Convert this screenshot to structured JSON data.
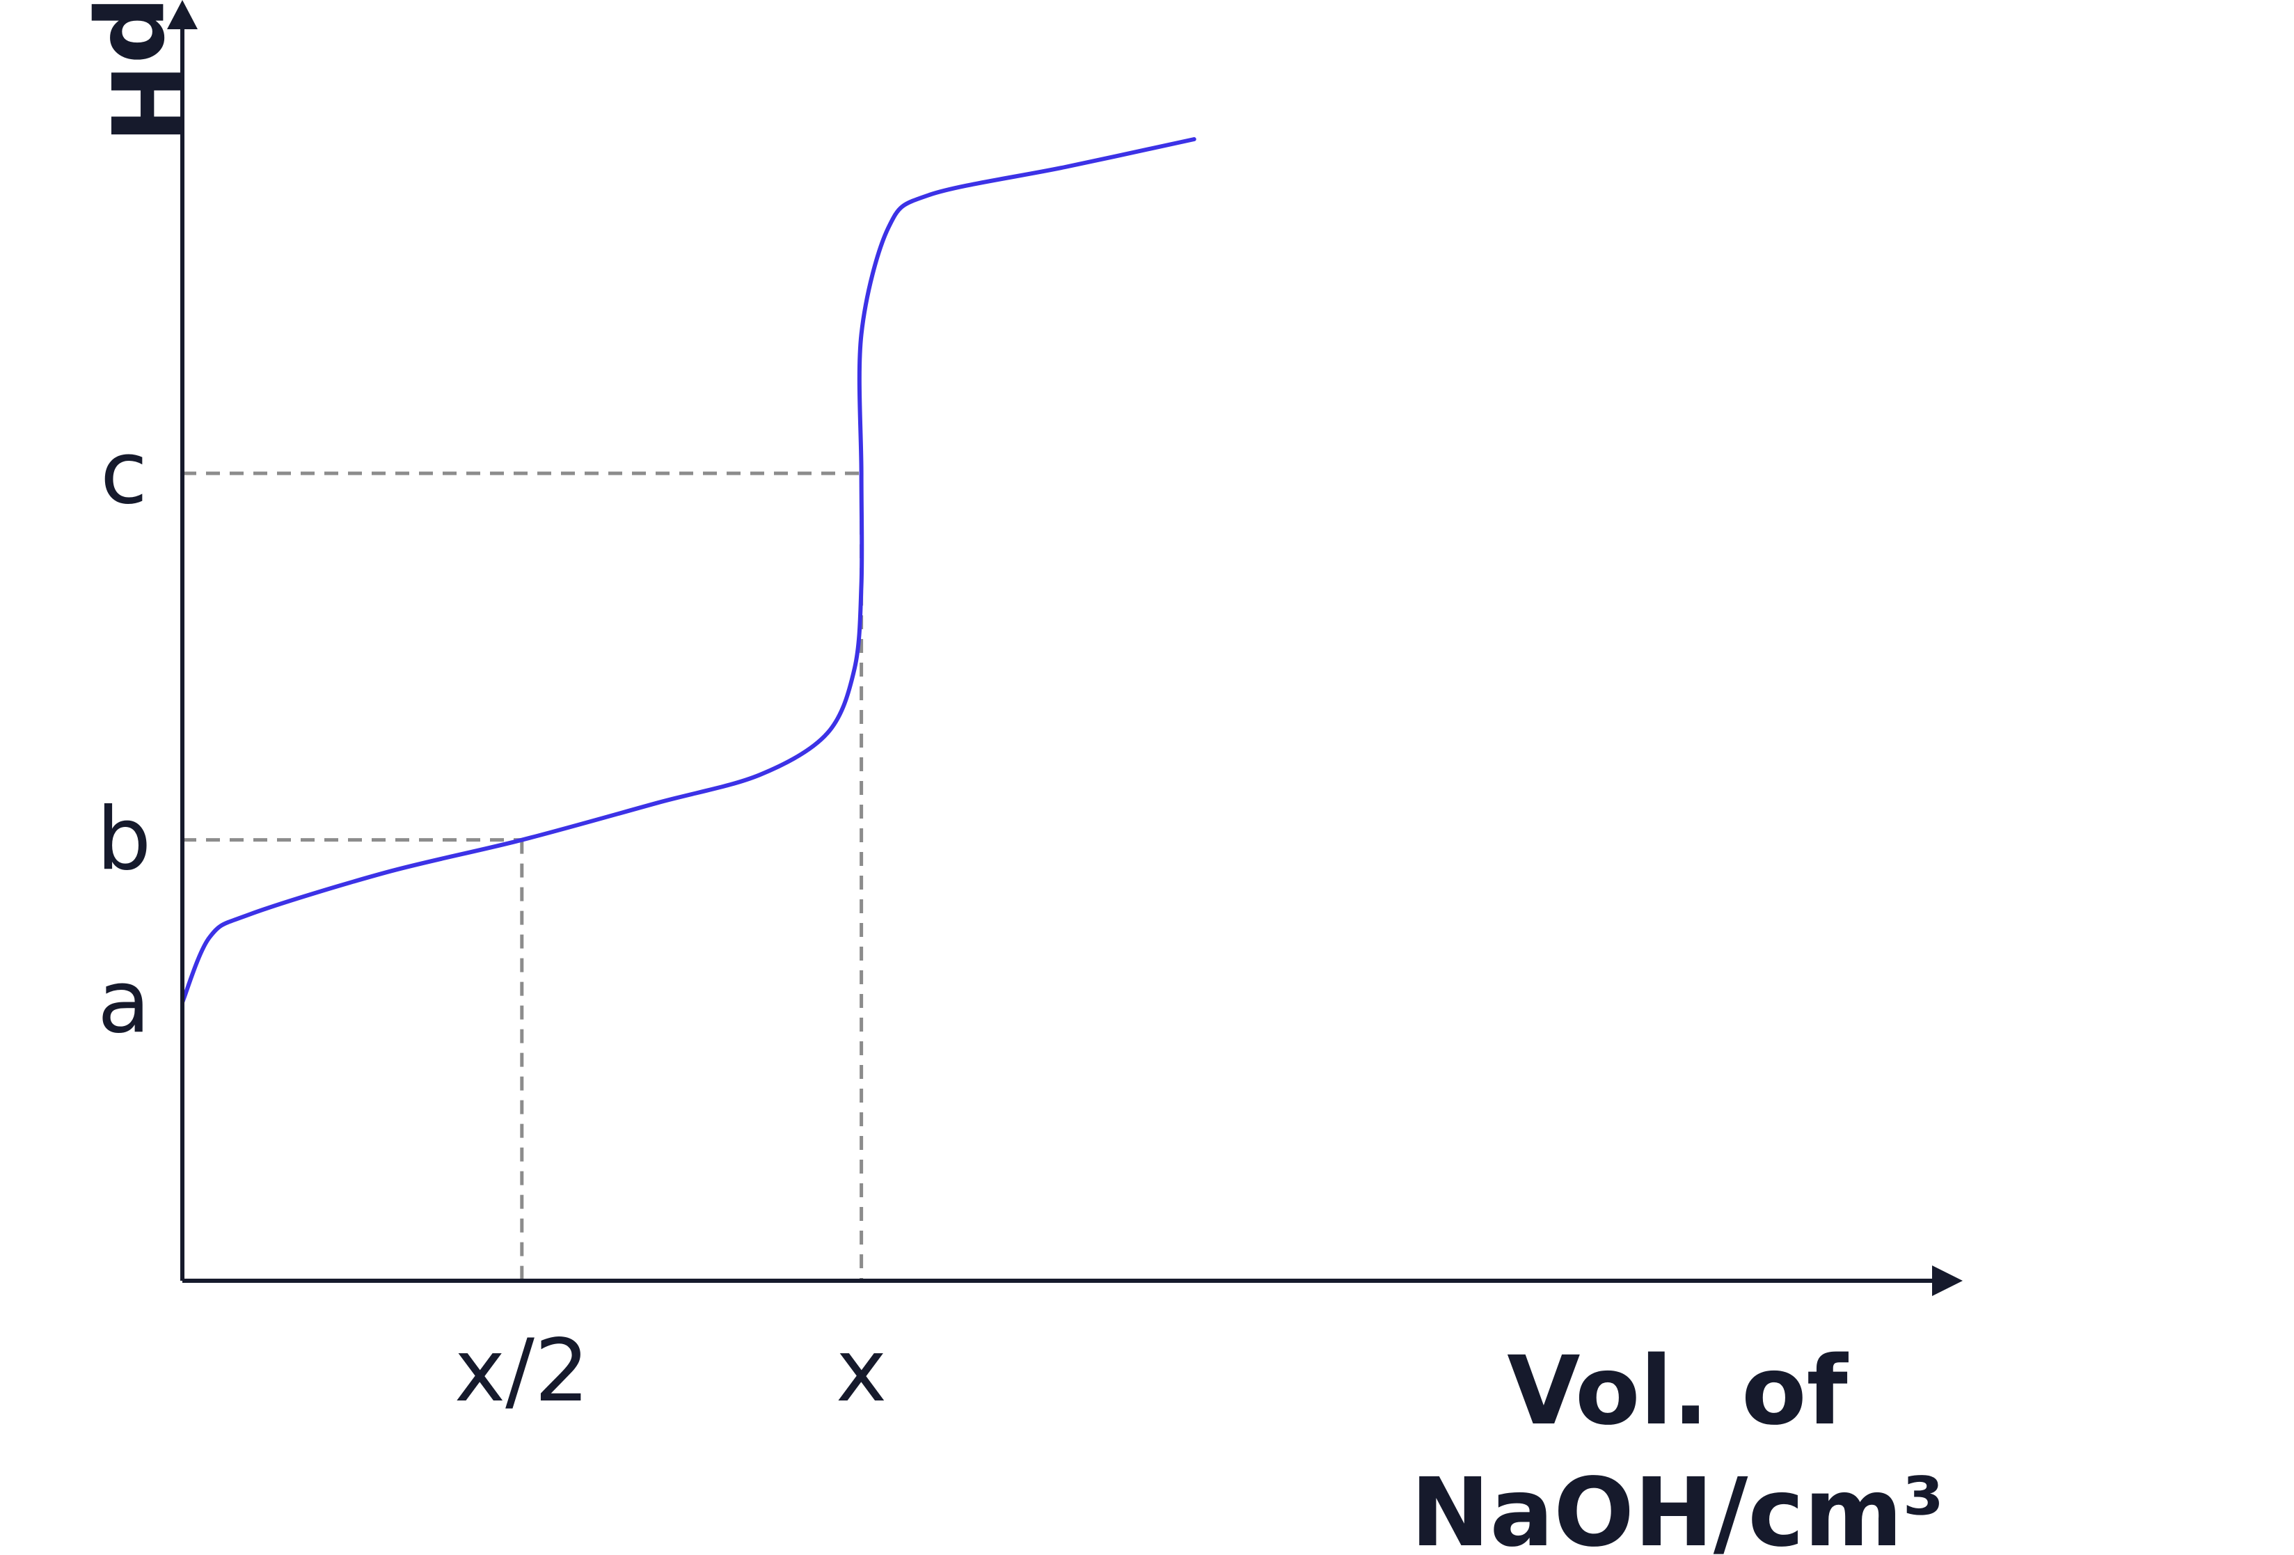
{
  "chart_data": {
    "type": "line",
    "ylabel": "pH",
    "xlabel_line1": "Vol. of",
    "xlabel_line2": "NaOH/cm³",
    "x_ticks": [
      {
        "label": "x/2",
        "value": 0.5
      },
      {
        "label": "x",
        "value": 1.0
      }
    ],
    "y_ticks": [
      {
        "label": "a",
        "value": 3.0
      },
      {
        "label": "b",
        "value": 4.75
      },
      {
        "label": "c",
        "value": 8.7
      }
    ],
    "xlim": [
      0,
      1.64
    ],
    "ylim": [
      0,
      13.8
    ],
    "series": [
      {
        "values": [
          {
            "x": 0.0,
            "y": 3.0
          },
          {
            "x": 0.04,
            "y": 3.7
          },
          {
            "x": 0.1,
            "y": 3.95
          },
          {
            "x": 0.3,
            "y": 4.4
          },
          {
            "x": 0.5,
            "y": 4.75
          },
          {
            "x": 0.7,
            "y": 5.15
          },
          {
            "x": 0.85,
            "y": 5.45
          },
          {
            "x": 0.95,
            "y": 5.9
          },
          {
            "x": 0.99,
            "y": 6.6
          },
          {
            "x": 1.0,
            "y": 7.5
          },
          {
            "x": 1.0,
            "y": 8.7
          },
          {
            "x": 1.0,
            "y": 10.2
          },
          {
            "x": 1.04,
            "y": 11.35
          },
          {
            "x": 1.1,
            "y": 11.7
          },
          {
            "x": 1.3,
            "y": 12.0
          },
          {
            "x": 1.49,
            "y": 12.3
          }
        ]
      }
    ],
    "grid": false,
    "colors": {
      "curve": "#3c32e6",
      "axis": "#161a2c",
      "guide": "#8c8c8c"
    }
  }
}
